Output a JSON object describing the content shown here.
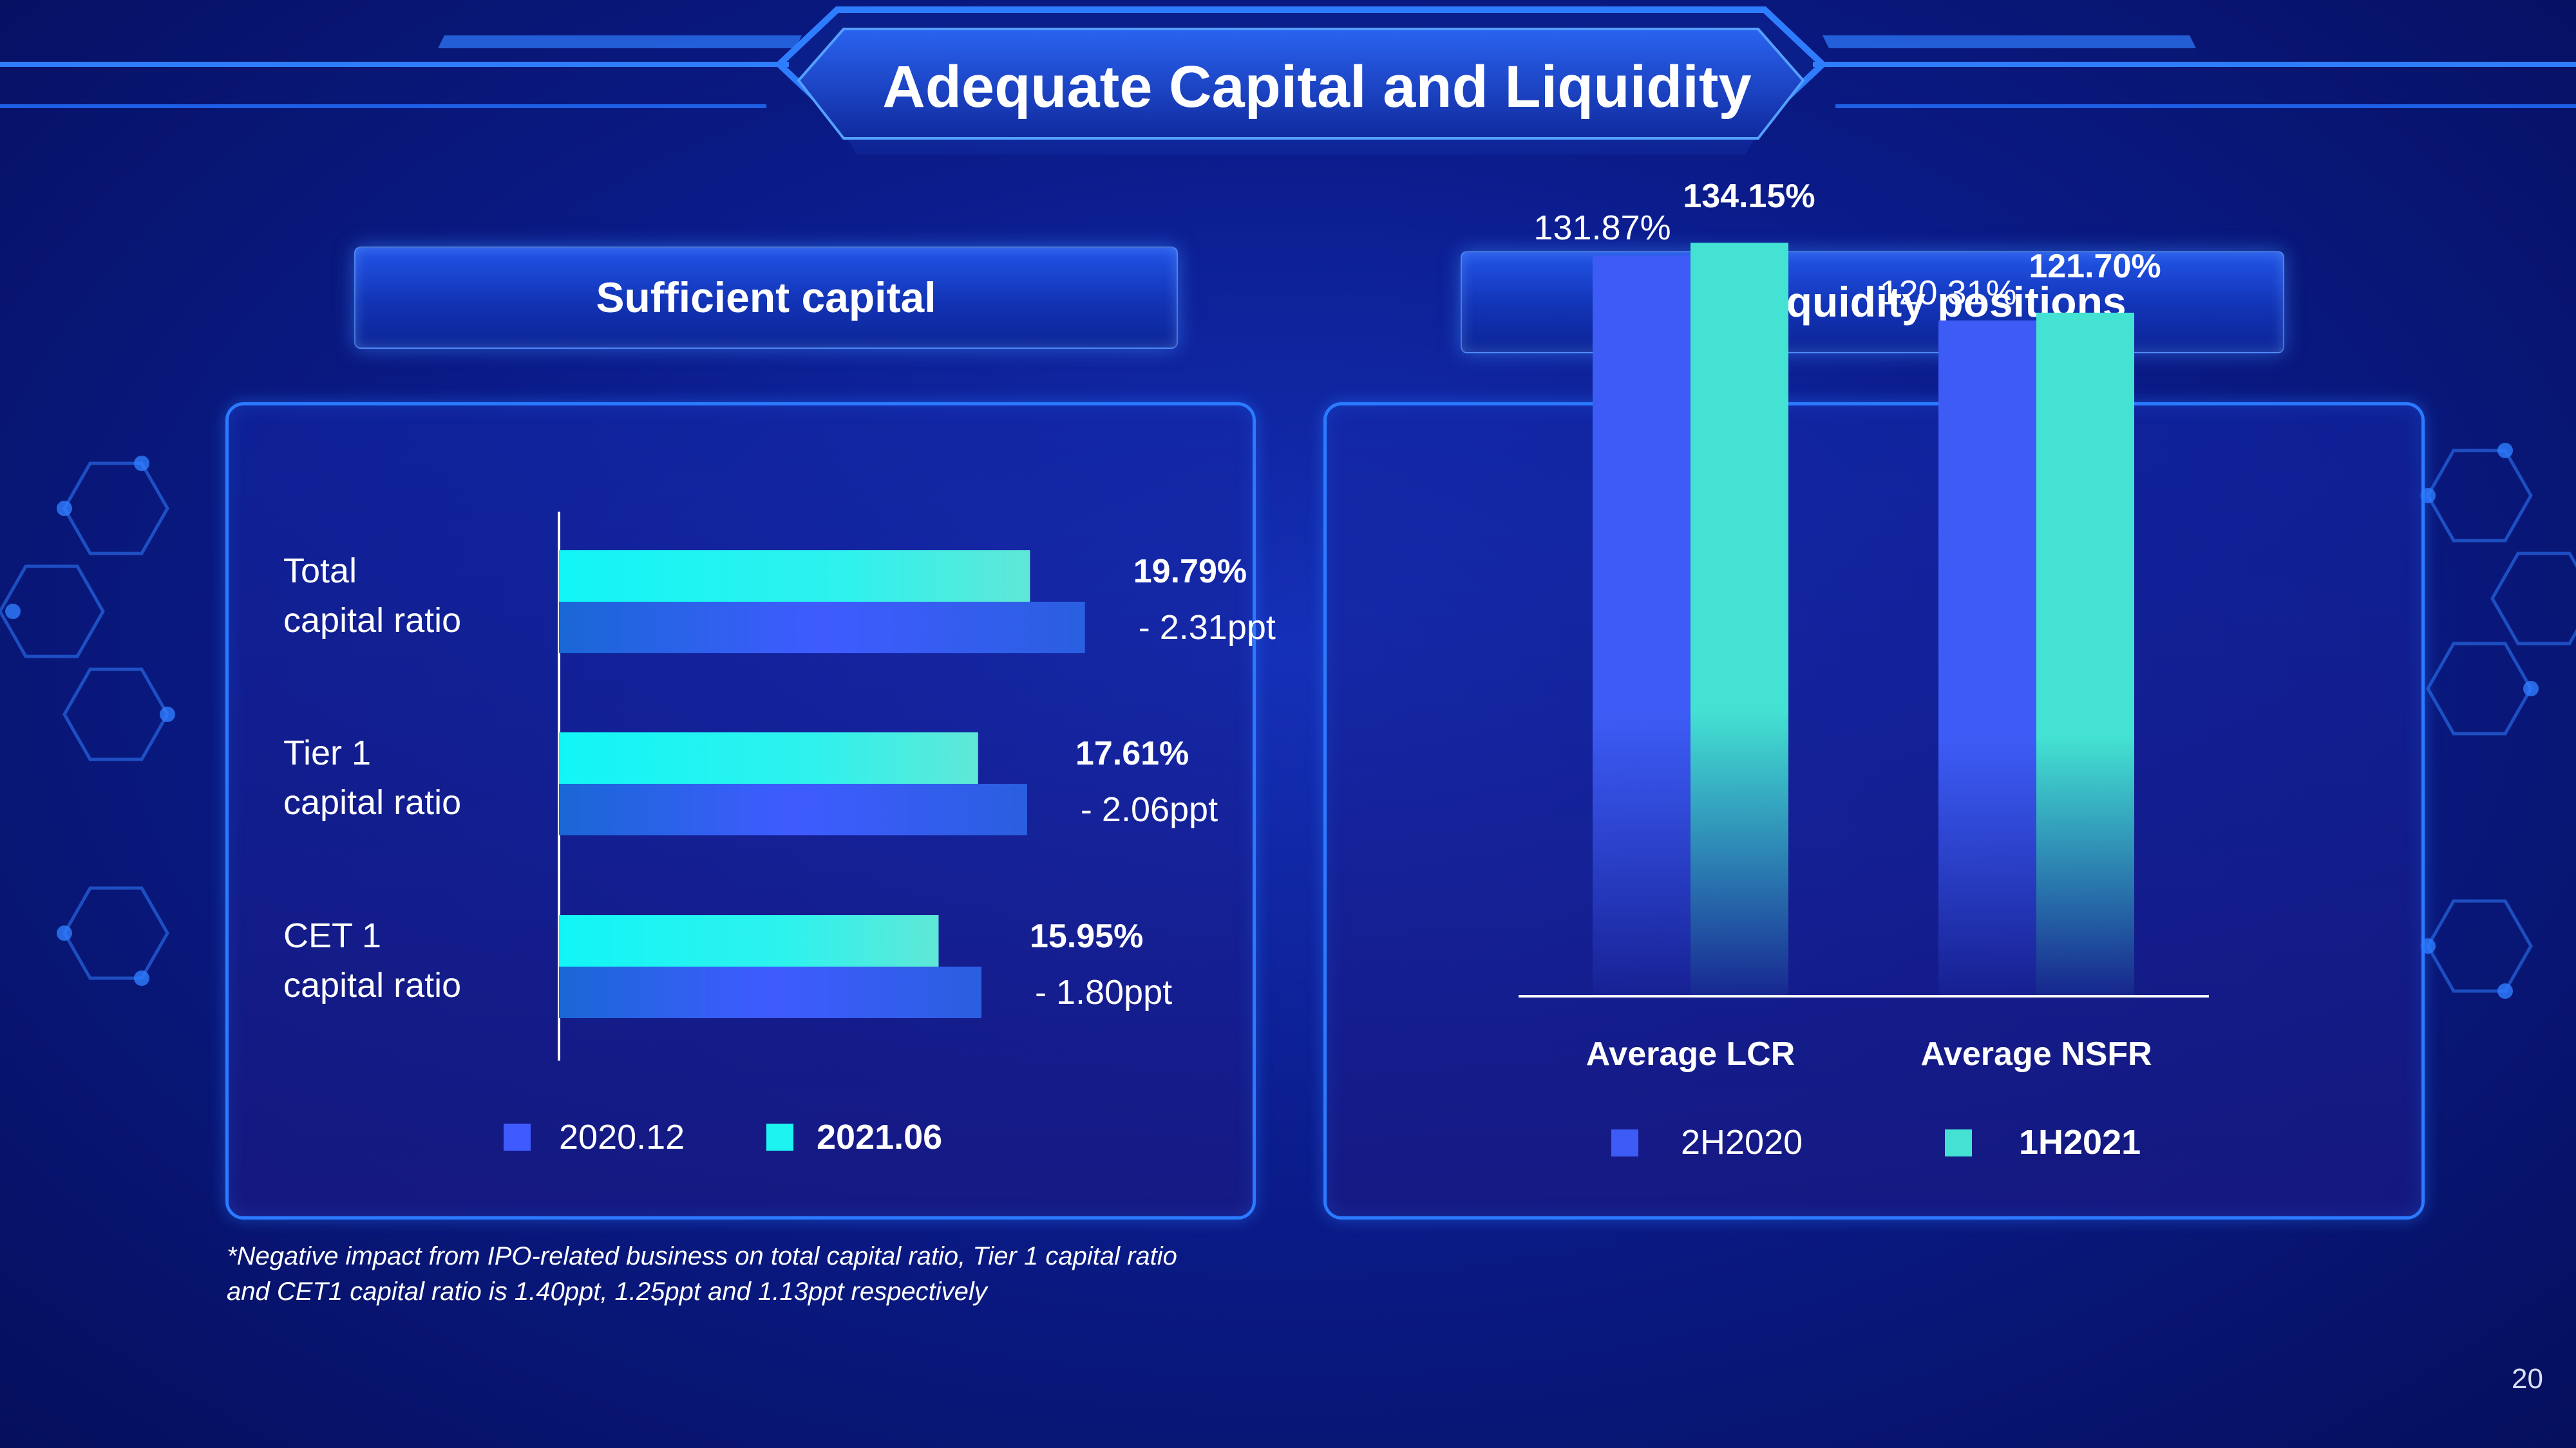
{
  "title": "Adequate Capital and Liquidity",
  "page_number": "20",
  "colors": {
    "bar_2020": "#3f5bff",
    "bar_2021": "#1df3f0",
    "lcr_2h2020": "#3d5cf5",
    "lcr_1h2021": "#44e2d2",
    "panel_border": "#2a7bff"
  },
  "left_section": {
    "heading": "Sufficient capital"
  },
  "right_section": {
    "heading": "Sound liquidity positions"
  },
  "footnote": {
    "line1": "*Negative impact from IPO-related business on total capital ratio, Tier 1 capital ratio",
    "line2": "and CET1 capital ratio is 1.40ppt, 1.25ppt and 1.13ppt respectively"
  },
  "chart_data": [
    {
      "type": "bar",
      "orientation": "horizontal",
      "categories": [
        [
          "Total",
          "capital ratio"
        ],
        [
          "Tier 1",
          "capital ratio"
        ],
        [
          "CET 1",
          "capital ratio"
        ]
      ],
      "series": [
        {
          "name": "2021.06",
          "values": [
            19.79,
            17.61,
            15.95
          ]
        },
        {
          "name": "2020.12",
          "values": [
            22.1,
            19.67,
            17.75
          ]
        }
      ],
      "value_labels": [
        "19.79%",
        "17.61%",
        "15.95%"
      ],
      "change_labels": [
        "- 2.31ppt",
        "- 2.06ppt",
        "- 1.80ppt"
      ],
      "legend": {
        "placement": "bottom",
        "items": [
          "2020.12",
          "2021.06"
        ]
      },
      "xlim": [
        0,
        46
      ],
      "grid": false
    },
    {
      "type": "bar",
      "orientation": "vertical",
      "categories": [
        "Average LCR",
        "Average NSFR"
      ],
      "series": [
        {
          "name": "2H2020",
          "values": [
            131.87,
            120.31
          ],
          "labels": [
            "131.87%",
            "120.31%"
          ]
        },
        {
          "name": "1H2021",
          "values": [
            134.15,
            121.7
          ],
          "labels": [
            "134.15%",
            "121.70%"
          ]
        }
      ],
      "legend": {
        "placement": "bottom",
        "items": [
          "2H2020",
          "1H2021"
        ]
      },
      "ylim": [
        0,
        165
      ],
      "grid": false
    }
  ]
}
